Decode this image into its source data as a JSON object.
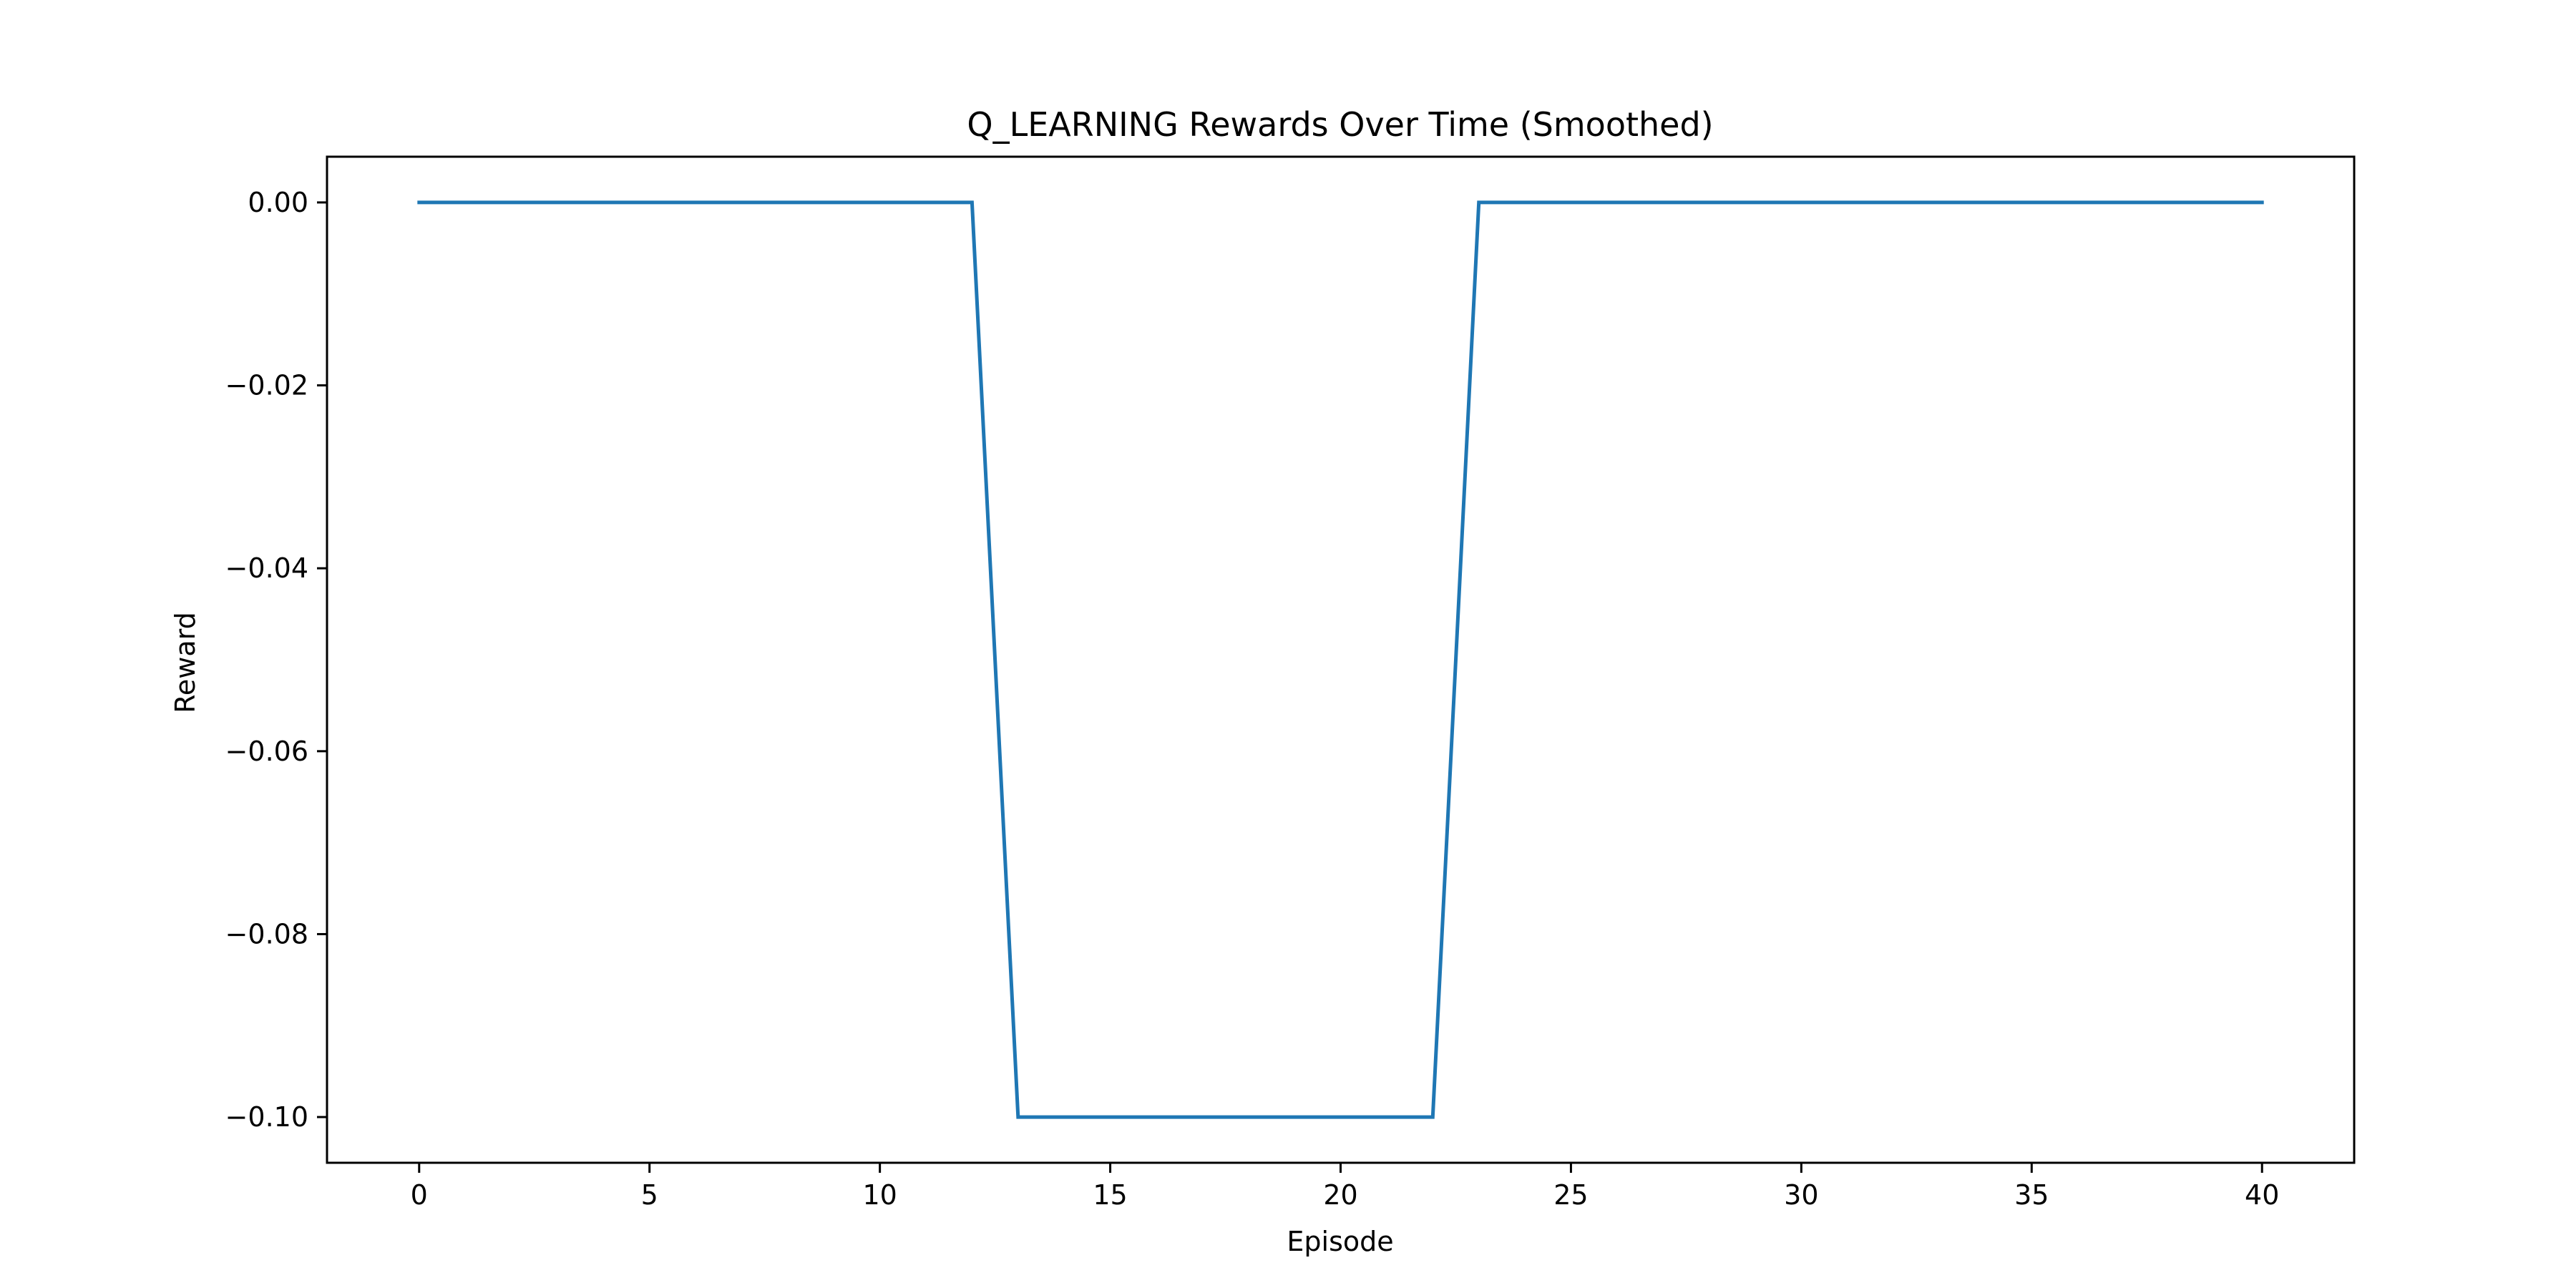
{
  "chart_data": {
    "type": "line",
    "title": "Q_LEARNING Rewards Over Time (Smoothed)",
    "xlabel": "Episode",
    "ylabel": "Reward",
    "xlim": [
      -2,
      42
    ],
    "ylim": [
      -0.105,
      0.005
    ],
    "x_ticks": [
      0,
      5,
      10,
      15,
      20,
      25,
      30,
      35,
      40
    ],
    "x_tick_labels": [
      "0",
      "5",
      "10",
      "15",
      "20",
      "25",
      "30",
      "35",
      "40"
    ],
    "y_ticks": [
      0.0,
      -0.02,
      -0.04,
      -0.06,
      -0.08,
      -0.1
    ],
    "y_tick_labels": [
      "0.00",
      "−0.02",
      "−0.04",
      "−0.06",
      "−0.08",
      "−0.10"
    ],
    "grid": false,
    "legend": "none",
    "series": [
      {
        "color": "#1f77b4",
        "x": [
          0,
          12,
          13,
          22,
          23,
          40
        ],
        "y": [
          0.0,
          0.0,
          -0.1,
          -0.1,
          0.0,
          0.0
        ]
      }
    ]
  }
}
